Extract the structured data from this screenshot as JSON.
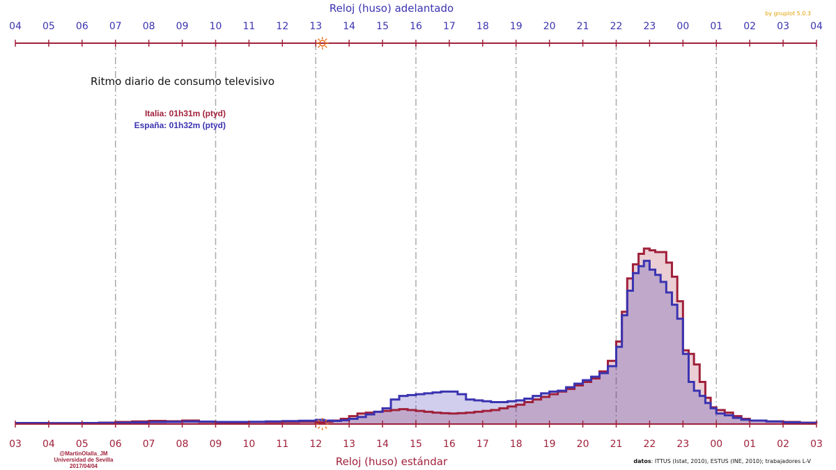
{
  "chart_data": {
    "type": "area",
    "title": "Ritmo diario de consumo televisivo",
    "xlabel": "Reloj (huso) estándar",
    "x2label": "Reloj (huso) adelantado",
    "xlim": [
      3,
      27
    ],
    "ylim": [
      0,
      100
    ],
    "grid": "vertical-dashdot",
    "x_ticks_bottom": [
      "03",
      "04",
      "05",
      "06",
      "07",
      "08",
      "09",
      "10",
      "11",
      "12",
      "13",
      "14",
      "15",
      "16",
      "17",
      "18",
      "19",
      "20",
      "21",
      "22",
      "23",
      "00",
      "01",
      "02",
      "03"
    ],
    "x_ticks_top": [
      "04",
      "05",
      "06",
      "07",
      "08",
      "09",
      "10",
      "11",
      "12",
      "13",
      "14",
      "15",
      "16",
      "17",
      "18",
      "19",
      "20",
      "21",
      "22",
      "23",
      "00",
      "01",
      "02",
      "03",
      "04"
    ],
    "major_gridlines_hours": [
      6,
      9,
      12,
      15,
      18,
      21,
      24,
      27
    ],
    "sun_marker_hour": 12.2,
    "x": [
      3.0,
      4.0,
      5.0,
      5.5,
      6.0,
      6.5,
      7.0,
      7.5,
      8.0,
      8.5,
      9.0,
      9.5,
      10.0,
      10.5,
      11.0,
      11.5,
      12.0,
      12.25,
      12.5,
      12.75,
      13.0,
      13.25,
      13.5,
      13.75,
      14.0,
      14.25,
      14.5,
      14.75,
      15.0,
      15.25,
      15.5,
      15.75,
      16.0,
      16.25,
      16.5,
      16.75,
      17.0,
      17.25,
      17.5,
      17.75,
      18.0,
      18.25,
      18.5,
      18.75,
      19.0,
      19.25,
      19.5,
      19.75,
      20.0,
      20.25,
      20.5,
      20.75,
      21.0,
      21.17,
      21.33,
      21.5,
      21.67,
      21.83,
      22.0,
      22.17,
      22.33,
      22.5,
      22.67,
      22.83,
      23.0,
      23.17,
      23.33,
      23.5,
      23.67,
      23.83,
      24.0,
      24.25,
      24.5,
      24.75,
      25.0,
      25.5,
      26.0,
      26.5,
      27.0
    ],
    "series": [
      {
        "name": "Italia: 01h31m (ptyd)",
        "values": [
          0.6,
          0.5,
          0.6,
          0.8,
          1.2,
          1.5,
          1.8,
          1.6,
          2.0,
          1.2,
          1.0,
          1.0,
          1.2,
          1.1,
          1.2,
          1.4,
          1.0,
          1.3,
          2.0,
          3.0,
          4.5,
          6.0,
          6.5,
          7.0,
          7.5,
          8.0,
          8.5,
          8.0,
          7.5,
          7.0,
          6.5,
          6.2,
          6.0,
          6.2,
          6.5,
          7.0,
          7.5,
          8.0,
          9.0,
          10.0,
          11.0,
          12.5,
          14.0,
          15.5,
          17.0,
          18.5,
          20.0,
          22.0,
          24.0,
          26.0,
          30.0,
          36.0,
          47.0,
          64.0,
          83.0,
          91.0,
          97.0,
          100.0,
          99.0,
          98.0,
          98.0,
          92.0,
          84.0,
          70.0,
          42.0,
          40.0,
          34.0,
          24.0,
          15.0,
          9.5,
          8.0,
          6.5,
          4.5,
          3.0,
          2.0,
          1.5,
          1.2,
          0.8,
          0.6
        ]
      },
      {
        "name": "España: 01h32m (ptyd)",
        "values": [
          0.6,
          0.5,
          0.6,
          0.7,
          0.8,
          1.0,
          1.2,
          1.3,
          1.5,
          1.4,
          1.2,
          1.2,
          1.3,
          1.5,
          1.7,
          1.9,
          2.4,
          2.0,
          1.8,
          2.2,
          3.0,
          4.0,
          5.5,
          7.0,
          9.0,
          14.0,
          16.0,
          16.5,
          17.0,
          17.5,
          18.0,
          18.5,
          18.5,
          17.0,
          14.0,
          13.5,
          13.0,
          12.5,
          12.5,
          13.0,
          13.5,
          14.5,
          16.0,
          17.5,
          18.5,
          19.0,
          21.0,
          23.0,
          25.0,
          27.0,
          29.0,
          33.0,
          44.0,
          62.0,
          76.0,
          86.0,
          90.0,
          93.0,
          88.0,
          85.0,
          81.0,
          75.0,
          68.0,
          60.0,
          40.0,
          24.0,
          19.0,
          16.0,
          12.0,
          9.0,
          6.0,
          5.0,
          3.5,
          2.5,
          2.0,
          1.5,
          1.0,
          0.7,
          0.5
        ]
      }
    ],
    "colors": {
      "italia": "#a0203a",
      "espana": "#3a33b0",
      "grid": "#aaaaaa",
      "sun": "#e86a10"
    }
  },
  "credits": {
    "author_line1": "@MartinOlalla_JM",
    "author_line2": "Universidad de Sevilla",
    "author_line3": "2017/04/04",
    "source_bold": "datos",
    "source_rest": ": ITTUS (Istat, 2010), ESTUS (INE, 2010); trabajadores L-V",
    "gnuplot": "by gnuplot 5.0.3"
  }
}
